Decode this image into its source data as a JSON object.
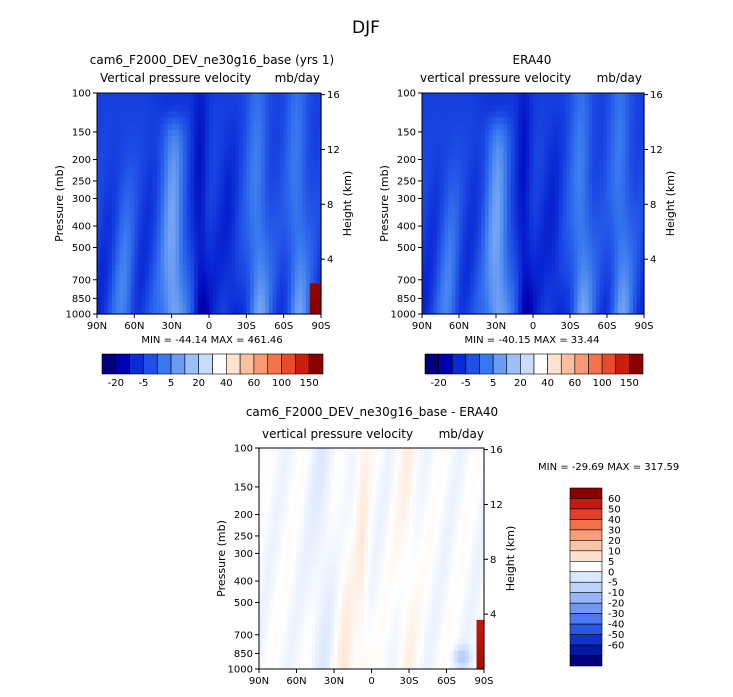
{
  "figure_title": "DJF",
  "colors": {
    "model_scale": [
      "#00007a",
      "#0000b3",
      "#0a2ad6",
      "#2050e6",
      "#3878ee",
      "#6a9cf2",
      "#9cbff8",
      "#c8dcfc",
      "#ffffff",
      "#fde4d0",
      "#fbc0a0",
      "#f79a74",
      "#f2734c",
      "#e84a2c",
      "#c81e10",
      "#8a0000"
    ],
    "diff_scale": [
      "#00007a",
      "#0018a6",
      "#1034c8",
      "#2a58e2",
      "#4a7aee",
      "#6e98f4",
      "#97b6f8",
      "#bcd2fb",
      "#dce8fd",
      "#ffffff",
      "#fde3cf",
      "#fbc4a6",
      "#f79d77",
      "#f07048",
      "#e0402a",
      "#c21a10",
      "#8a0000"
    ]
  },
  "panel_model": {
    "title": "cam6_F2000_DEV_ne30g16_base (yrs 1)",
    "variable": "Vertical pressure velocity",
    "units": "mb/day",
    "stats": "MIN = -44.14   MAX = 461.46"
  },
  "panel_era": {
    "title": "ERA40",
    "variable": "vertical pressure velocity",
    "units": "mb/day",
    "stats": "MIN = -40.15   MAX =  33.44"
  },
  "panel_diff": {
    "title": "cam6_F2000_DEV_ne30g16_base - ERA40",
    "variable": "vertical pressure velocity",
    "units": "mb/day",
    "stats": "MIN = -29.69   MAX = 317.59"
  },
  "chart_data": [
    {
      "type": "heatmap",
      "title": "cam6_F2000_DEV_ne30g16_base (yrs 1)",
      "xlabel": "",
      "ylabel": "Pressure (mb)",
      "y2label": "Height (km)",
      "x_ticks": [
        "90N",
        "60N",
        "30N",
        "0",
        "30S",
        "60S",
        "90S"
      ],
      "y_ticks": [
        "100",
        "150",
        "200",
        "250",
        "300",
        "400",
        "500",
        "700",
        "850",
        "1000"
      ],
      "y2_ticks": [
        "16",
        "12",
        "8",
        "4"
      ],
      "ylim": [
        1000,
        100
      ],
      "y_scale": "log",
      "colorbar_labels": [
        "-20",
        "-5",
        "5",
        "20",
        "40",
        "60",
        "100",
        "150"
      ],
      "min": -44.14,
      "max": 461.46
    },
    {
      "type": "heatmap",
      "title": "ERA40",
      "xlabel": "",
      "ylabel": "Pressure (mb)",
      "y2label": "Height (km)",
      "x_ticks": [
        "90N",
        "60N",
        "30N",
        "0",
        "30S",
        "60S",
        "90S"
      ],
      "y_ticks": [
        "100",
        "150",
        "200",
        "250",
        "300",
        "400",
        "500",
        "700",
        "850",
        "1000"
      ],
      "y2_ticks": [
        "16",
        "12",
        "8",
        "4"
      ],
      "ylim": [
        1000,
        100
      ],
      "y_scale": "log",
      "colorbar_labels": [
        "-20",
        "-5",
        "5",
        "20",
        "40",
        "60",
        "100",
        "150"
      ],
      "min": -40.15,
      "max": 33.44
    },
    {
      "type": "heatmap",
      "title": "cam6_F2000_DEV_ne30g16_base - ERA40",
      "xlabel": "",
      "ylabel": "Pressure (mb)",
      "y2label": "Height (km)",
      "x_ticks": [
        "90N",
        "60N",
        "30N",
        "0",
        "30S",
        "60S",
        "90S"
      ],
      "y_ticks": [
        "100",
        "150",
        "200",
        "250",
        "300",
        "400",
        "500",
        "700",
        "850",
        "1000"
      ],
      "y2_ticks": [
        "16",
        "12",
        "8",
        "4"
      ],
      "ylim": [
        1000,
        100
      ],
      "y_scale": "log",
      "colorbar_labels": [
        "60",
        "50",
        "40",
        "30",
        "20",
        "10",
        "5",
        "0",
        "-5",
        "-10",
        "-20",
        "-30",
        "-40",
        "-50",
        "-60"
      ],
      "min": -29.69,
      "max": 317.59
    }
  ]
}
